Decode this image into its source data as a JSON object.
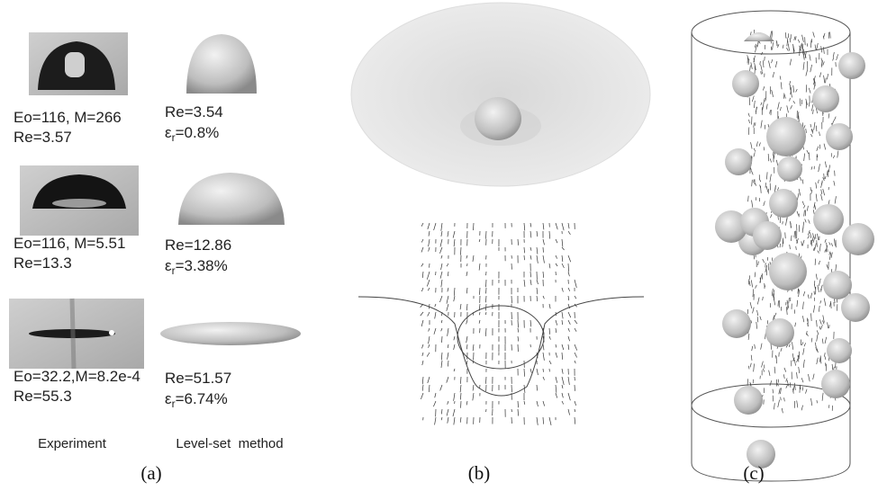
{
  "panel_a": {
    "rows": [
      {
        "experiment": [
          "Eo=116, M=266",
          "Re=3.57"
        ],
        "simulation_re": "Re=3.54",
        "simulation_error": {
          "symbol": "ε",
          "subscript": "r",
          "text": "=0.8%"
        }
      },
      {
        "experiment": [
          "Eo=116, M=5.51",
          "Re=13.3"
        ],
        "simulation_re": "Re=12.86",
        "simulation_error": {
          "symbol": "ε",
          "subscript": "r",
          "text": "=3.38%"
        }
      },
      {
        "experiment": [
          "Eo=32.2,M=8.2e-4",
          "Re=55.3"
        ],
        "simulation_re": "Re=51.57",
        "simulation_error": {
          "symbol": "ε",
          "subscript": "r",
          "text": "=6.74%"
        }
      }
    ],
    "column_captions": [
      "Experiment",
      "Level-set  method"
    ],
    "label": "(a)"
  },
  "panel_b": {
    "label": "(b)"
  },
  "panel_c": {
    "label": "(c)"
  }
}
